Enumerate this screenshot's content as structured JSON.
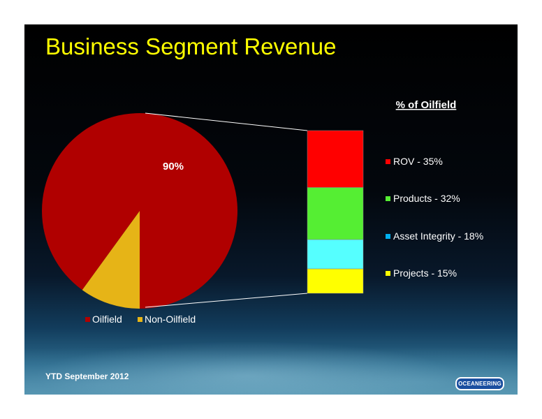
{
  "slide": {
    "title": "Business Segment Revenue",
    "footer": "YTD September 2012",
    "logo_text": "OCEANEERING"
  },
  "chart_data": [
    {
      "type": "pie",
      "categories": [
        "Oilfield",
        "Non-Oilfield"
      ],
      "values": [
        90,
        10
      ],
      "colors": [
        "#b00000",
        "#e6b417"
      ],
      "data_labels": [
        "90%",
        ""
      ],
      "legend": {
        "placement": "bottom",
        "entries": [
          "Oilfield",
          "Non-Oilfield"
        ]
      }
    },
    {
      "type": "bar",
      "stacked": true,
      "title": "% of Oilfield",
      "categories": [
        "Oilfield"
      ],
      "series": [
        {
          "name": "ROV - 35%",
          "values": [
            35
          ],
          "color": "#ff0000"
        },
        {
          "name": "Products - 32%",
          "values": [
            32
          ],
          "color": "#55ee33"
        },
        {
          "name": "Asset Integrity - 18%",
          "values": [
            18
          ],
          "color": "#55ffff"
        },
        {
          "name": "Projects - 15%",
          "values": [
            15
          ],
          "color": "#ffff00"
        }
      ],
      "legend_colors": [
        "#ff0000",
        "#55ee33",
        "#00b0f0",
        "#ffff00"
      ],
      "legend": {
        "placement": "right"
      }
    }
  ]
}
